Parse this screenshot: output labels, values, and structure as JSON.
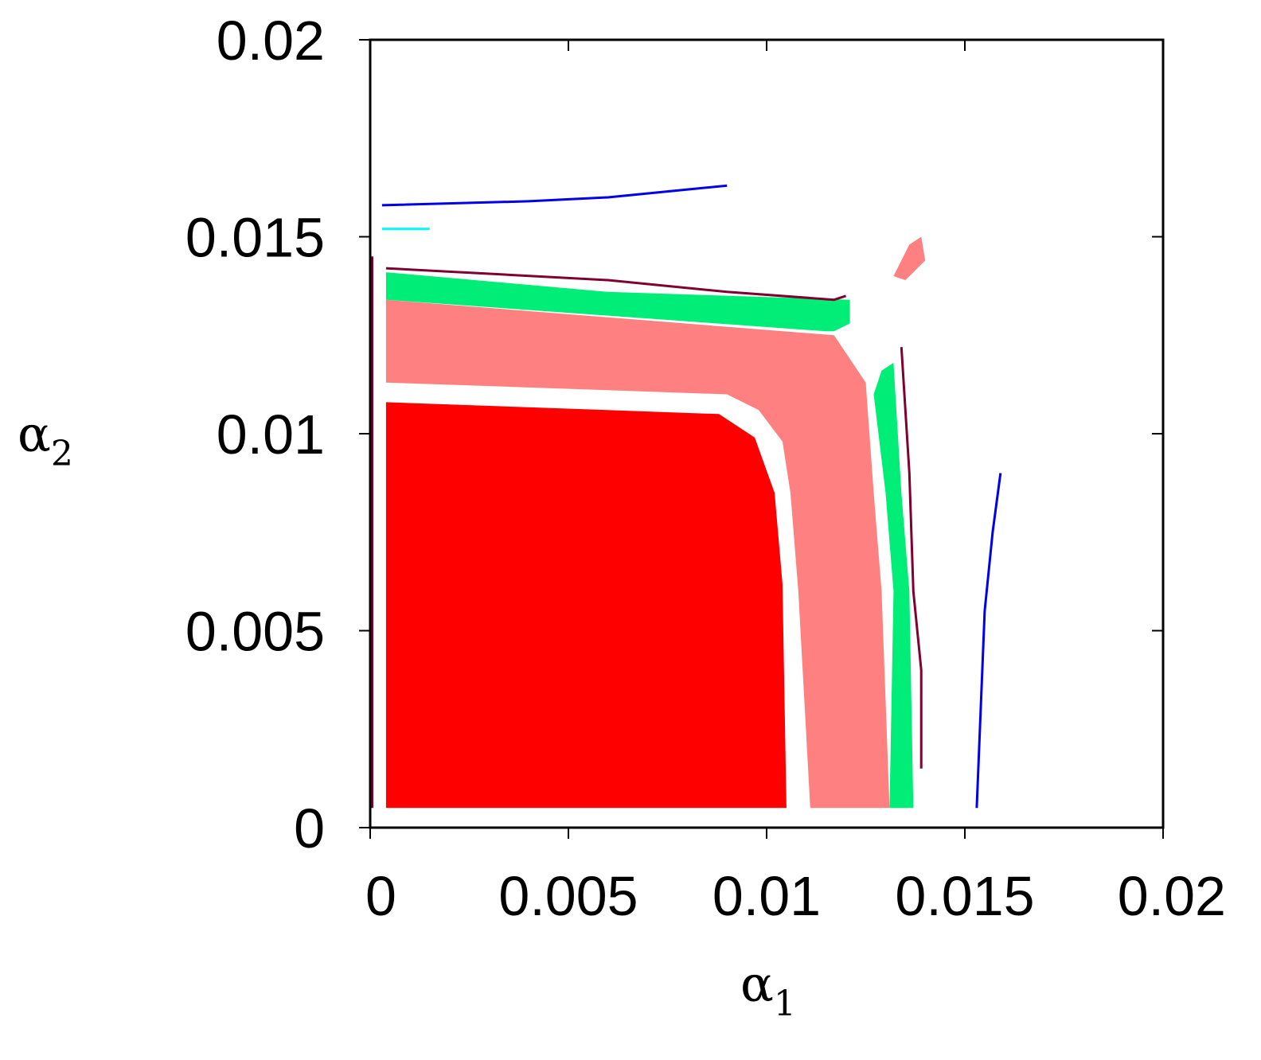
{
  "chart_data": {
    "type": "heatmap",
    "title": "",
    "xlabel": {
      "symbol": "α",
      "subscript": "1"
    },
    "ylabel": {
      "symbol": "α",
      "subscript": "2"
    },
    "xlim": [
      0,
      0.02
    ],
    "ylim": [
      0,
      0.02
    ],
    "xticks": [
      "0",
      "0.005",
      "0.01",
      "0.015",
      "0.02"
    ],
    "yticks": [
      "0",
      "0.005",
      "0.01",
      "0.015",
      "0.02"
    ],
    "xtick_values": [
      0,
      0.005,
      0.01,
      0.015,
      0.02
    ],
    "ytick_values": [
      0,
      0.005,
      0.01,
      0.015,
      0.02
    ],
    "grid": false,
    "regions": [
      {
        "name": "red",
        "color": "#ff0000",
        "points": [
          [
            0.0004,
            0.0005
          ],
          [
            0.0105,
            0.0005
          ],
          [
            0.0104,
            0.0062
          ],
          [
            0.0102,
            0.0085
          ],
          [
            0.0097,
            0.0099
          ],
          [
            0.0088,
            0.0105
          ],
          [
            0.0004,
            0.0108
          ]
        ]
      },
      {
        "name": "pink",
        "color": "#ff8080",
        "points": [
          [
            0.0004,
            0.0113
          ],
          [
            0.009,
            0.011
          ],
          [
            0.0098,
            0.0106
          ],
          [
            0.0104,
            0.0098
          ],
          [
            0.0106,
            0.0085
          ],
          [
            0.0108,
            0.006
          ],
          [
            0.0111,
            0.0005
          ],
          [
            0.0131,
            0.0005
          ],
          [
            0.0129,
            0.006
          ],
          [
            0.0127,
            0.0085
          ],
          [
            0.0125,
            0.0113
          ],
          [
            0.0117,
            0.0125
          ],
          [
            0.0004,
            0.0134
          ]
        ]
      },
      {
        "name": "green",
        "color": "#00ee77",
        "points": [
          [
            0.0004,
            0.0134
          ],
          [
            0.0115,
            0.0126
          ],
          [
            0.0117,
            0.0126
          ],
          [
            0.0121,
            0.0128
          ],
          [
            0.0121,
            0.0134
          ],
          [
            0.006,
            0.0136
          ],
          [
            0.0004,
            0.0141
          ]
        ]
      },
      {
        "name": "green",
        "color": "#00ee77",
        "points": [
          [
            0.0131,
            0.0005
          ],
          [
            0.0137,
            0.0005
          ],
          [
            0.0136,
            0.006
          ],
          [
            0.0134,
            0.0085
          ],
          [
            0.0132,
            0.0118
          ],
          [
            0.0129,
            0.0116
          ],
          [
            0.0127,
            0.011
          ],
          [
            0.013,
            0.0085
          ],
          [
            0.0132,
            0.006
          ]
        ]
      },
      {
        "name": "pink-island",
        "color": "#ff8080",
        "points": [
          [
            0.0132,
            0.014
          ],
          [
            0.0136,
            0.0148
          ],
          [
            0.0139,
            0.015
          ],
          [
            0.014,
            0.0144
          ],
          [
            0.0135,
            0.0139
          ]
        ]
      }
    ],
    "curves": [
      {
        "color": "#800030",
        "points": [
          [
            0.0004,
            0.0142
          ],
          [
            0.006,
            0.0139
          ],
          [
            0.009,
            0.0136
          ],
          [
            0.0117,
            0.0134
          ],
          [
            0.012,
            0.0135
          ]
        ]
      },
      {
        "color": "#800030",
        "points": [
          [
            0.0134,
            0.0122
          ],
          [
            0.0136,
            0.009
          ],
          [
            0.0137,
            0.006
          ],
          [
            0.0139,
            0.004
          ],
          [
            0.0139,
            0.0015
          ]
        ]
      },
      {
        "color": "#0000ee",
        "points": [
          [
            0.0003,
            0.0158
          ],
          [
            0.004,
            0.0159
          ],
          [
            0.006,
            0.016
          ],
          [
            0.008,
            0.0162
          ],
          [
            0.009,
            0.0163
          ]
        ]
      },
      {
        "color": "#0000ee",
        "points": [
          [
            0.0153,
            0.0005
          ],
          [
            0.0154,
            0.003
          ],
          [
            0.0155,
            0.0055
          ],
          [
            0.0157,
            0.0075
          ],
          [
            0.0159,
            0.009
          ]
        ]
      },
      {
        "color": "#00ffff",
        "points": [
          [
            0.0003,
            0.0152
          ],
          [
            0.0015,
            0.0152
          ]
        ]
      },
      {
        "color": "#800030",
        "points": [
          [
            5e-05,
            0.0005
          ],
          [
            5e-05,
            0.0145
          ]
        ]
      }
    ]
  }
}
